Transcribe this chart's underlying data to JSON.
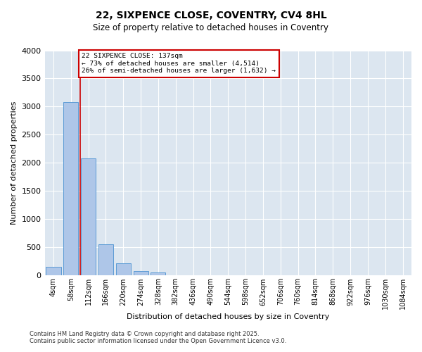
{
  "title": "22, SIXPENCE CLOSE, COVENTRY, CV4 8HL",
  "subtitle": "Size of property relative to detached houses in Coventry",
  "xlabel": "Distribution of detached houses by size in Coventry",
  "ylabel": "Number of detached properties",
  "property_label": "22 SIXPENCE CLOSE: 137sqm",
  "annotation_line1": "← 73% of detached houses are smaller (4,514)",
  "annotation_line2": "26% of semi-detached houses are larger (1,632) →",
  "footer1": "Contains HM Land Registry data © Crown copyright and database right 2025.",
  "footer2": "Contains public sector information licensed under the Open Government Licence v3.0.",
  "bin_labels": [
    "4sqm",
    "58sqm",
    "112sqm",
    "166sqm",
    "220sqm",
    "274sqm",
    "328sqm",
    "382sqm",
    "436sqm",
    "490sqm",
    "544sqm",
    "598sqm",
    "652sqm",
    "706sqm",
    "760sqm",
    "814sqm",
    "868sqm",
    "922sqm",
    "976sqm",
    "1030sqm",
    "1084sqm"
  ],
  "bar_values": [
    150,
    3080,
    2080,
    560,
    220,
    80,
    50,
    0,
    0,
    0,
    0,
    0,
    0,
    0,
    0,
    0,
    0,
    0,
    0,
    0,
    0
  ],
  "bar_color": "#aec6e8",
  "bar_edge_color": "#5b9bd5",
  "vline_color": "#cc0000",
  "vline_pos": 1.55,
  "annotation_box_color": "#cc0000",
  "background_color": "#dce6f0",
  "ylim": [
    0,
    4000
  ],
  "yticks": [
    0,
    500,
    1000,
    1500,
    2000,
    2500,
    3000,
    3500,
    4000
  ]
}
